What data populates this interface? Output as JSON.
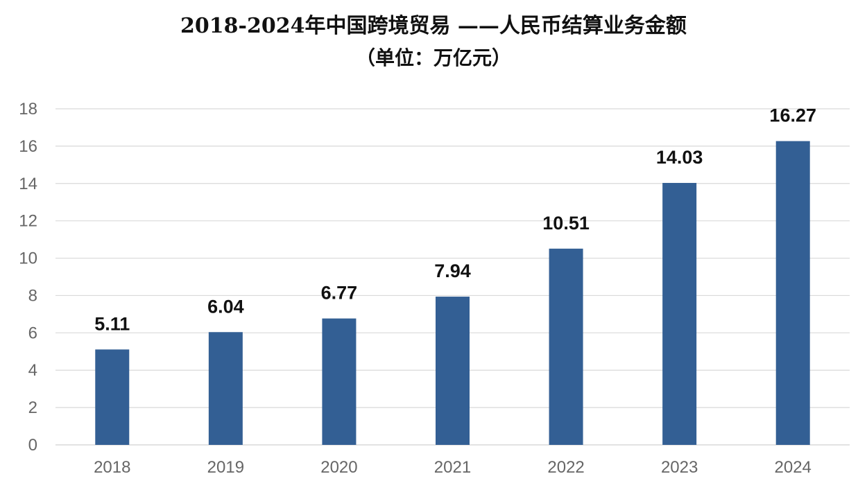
{
  "chart_data": {
    "type": "bar",
    "title": "2018-2024年中国跨境贸易 ——人民币结算业务金额",
    "subtitle": "（单位：万亿元）",
    "categories": [
      "2018",
      "2019",
      "2020",
      "2021",
      "2022",
      "2023",
      "2024"
    ],
    "values": [
      5.11,
      6.04,
      6.77,
      7.94,
      10.51,
      14.03,
      16.27
    ],
    "data_labels": [
      "5.11",
      "6.04",
      "6.77",
      "7.94",
      "10.51",
      "14.03",
      "16.27"
    ],
    "xlabel": "",
    "ylabel": "",
    "ylim": [
      0,
      18
    ],
    "yticks": [
      "0",
      "2",
      "4",
      "6",
      "8",
      "10",
      "12",
      "14",
      "16",
      "18"
    ],
    "grid": true,
    "legend": "none",
    "bar_color": "#335f94",
    "grid_color": "#d9d9d9"
  }
}
